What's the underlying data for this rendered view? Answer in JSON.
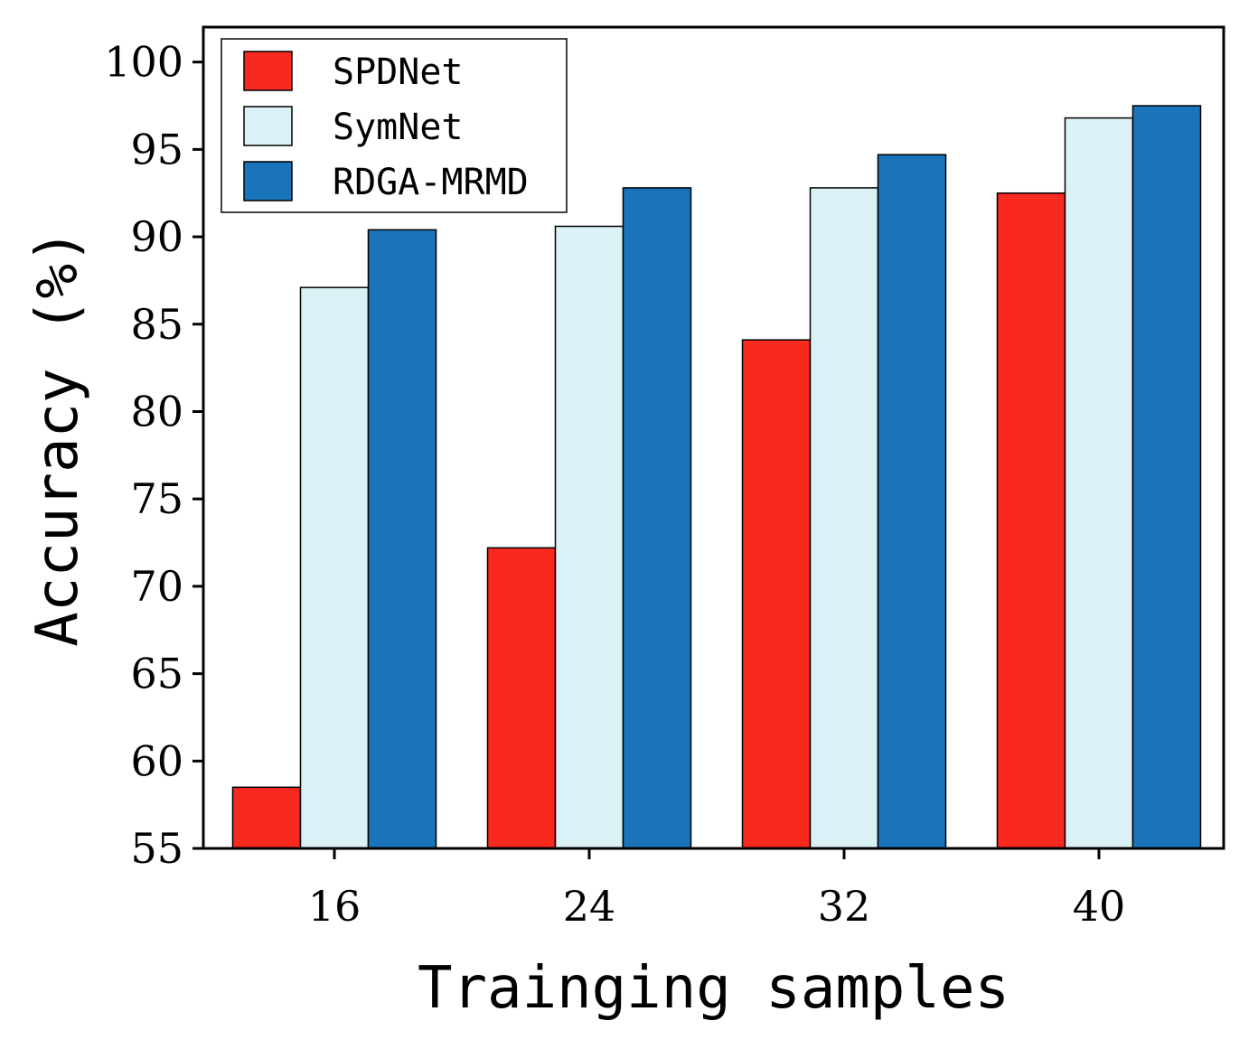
{
  "chart_data": {
    "type": "bar",
    "xlabel": "Trainging samples",
    "ylabel": "Accuracy (%)",
    "categories": [
      "16",
      "24",
      "32",
      "40"
    ],
    "ylim": [
      55,
      102
    ],
    "yticks": [
      55,
      60,
      65,
      70,
      75,
      80,
      85,
      90,
      95,
      100
    ],
    "legend_position": "top-left",
    "grid": false,
    "series": [
      {
        "name": "SPDNet",
        "color": "#f8291f",
        "values": [
          58.5,
          72.2,
          84.1,
          92.5
        ]
      },
      {
        "name": "SymNet",
        "color": "#daf1f6",
        "values": [
          87.1,
          90.6,
          92.8,
          96.8
        ]
      },
      {
        "name": "RDGA-MRMD",
        "color": "#1b74b9",
        "values": [
          90.4,
          92.8,
          94.7,
          97.5
        ]
      }
    ]
  }
}
